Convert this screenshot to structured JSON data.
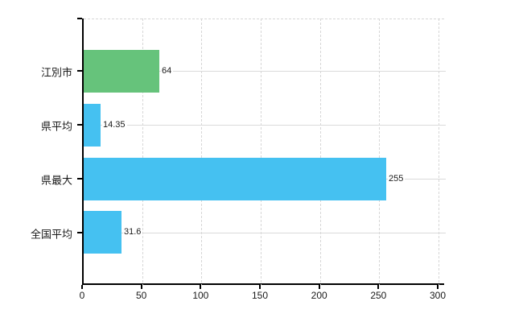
{
  "page": {
    "background_color": "#ffffff",
    "title": ""
  },
  "chart_data": {
    "type": "bar",
    "orientation": "horizontal",
    "title": "",
    "xlabel": "",
    "ylabel": "",
    "categories": [
      "江別市",
      "県平均",
      "県最大",
      "全国平均"
    ],
    "values": [
      64,
      14.35,
      255,
      31.6
    ],
    "value_labels": [
      "64",
      "14.35",
      "255",
      "31.6"
    ],
    "bar_colors": [
      "#66c37b",
      "#45c1f1",
      "#45c1f1",
      "#45c1f1"
    ],
    "xlim": [
      0,
      300
    ],
    "x_ticks": [
      0,
      50,
      100,
      150,
      200,
      250,
      300
    ],
    "x_tick_labels": [
      "0",
      "50",
      "100",
      "150",
      "200",
      "250",
      "300"
    ],
    "grid": true,
    "gridline_color": "#d6d6d6",
    "axis_color": "#000000",
    "text_color": "#1a1a1a",
    "legend": "none"
  }
}
